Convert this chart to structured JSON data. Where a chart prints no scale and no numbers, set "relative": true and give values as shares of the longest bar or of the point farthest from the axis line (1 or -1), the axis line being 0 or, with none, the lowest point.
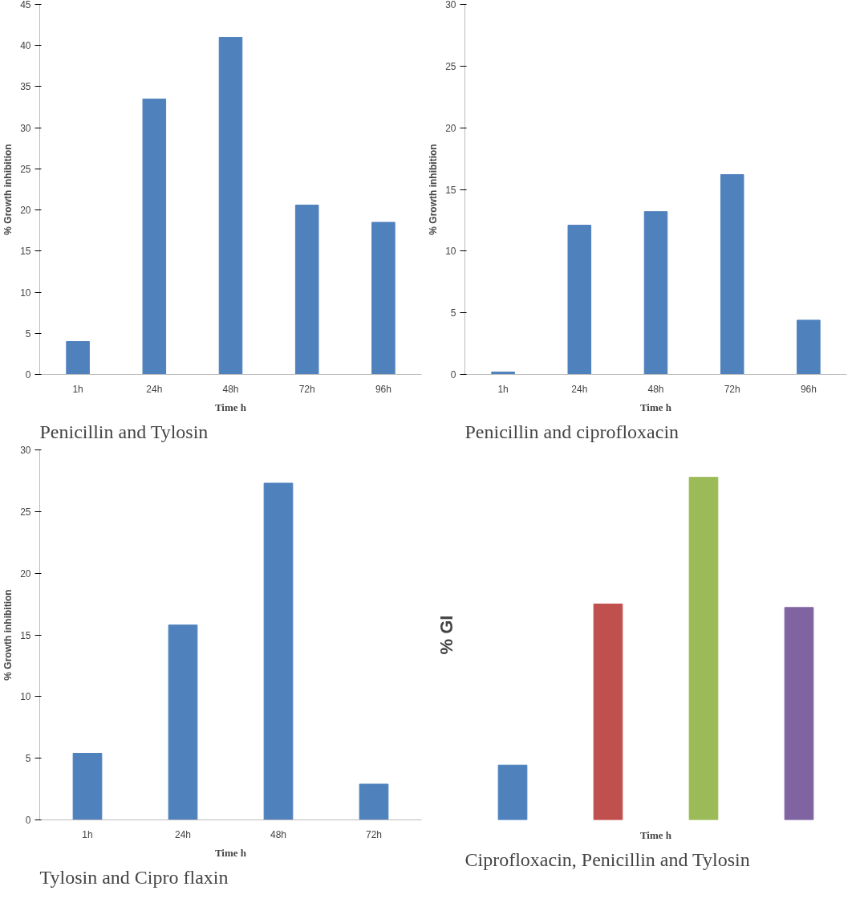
{
  "chart_data": [
    {
      "type": "bar",
      "title": "Penicillin and Tylosin",
      "xlabel": "Time h",
      "ylabel": "% Growth inhibition",
      "categories": [
        "1h",
        "24h",
        "48h",
        "72h",
        "96h"
      ],
      "values": [
        4,
        33.5,
        41,
        20.6,
        18.5
      ],
      "color": "#4f81bd",
      "ylim": [
        0,
        45
      ],
      "yticks": [
        0,
        5,
        10,
        15,
        20,
        25,
        30,
        35,
        40,
        45
      ],
      "grid": false
    },
    {
      "type": "bar",
      "title": "Penicillin and ciprofloxacin",
      "xlabel": "Time h",
      "ylabel": "% Growth inhibition",
      "categories": [
        "1h",
        "24h",
        "48h",
        "72h",
        "96h"
      ],
      "values": [
        0.2,
        12.1,
        13.2,
        16.2,
        4.4
      ],
      "color": "#4f81bd",
      "ylim": [
        0,
        30
      ],
      "yticks": [
        0,
        5,
        10,
        15,
        20,
        25,
        30
      ],
      "grid": false
    },
    {
      "type": "bar",
      "title": "Tylosin and Cipro flaxin",
      "xlabel": "Time h",
      "ylabel": "% Growth inhibition",
      "categories": [
        "1h",
        "24h",
        "48h",
        "72h"
      ],
      "values": [
        5.4,
        15.8,
        27.3,
        2.9
      ],
      "color": "#4f81bd",
      "ylim": [
        0,
        30
      ],
      "yticks": [
        0,
        5,
        10,
        15,
        20,
        25,
        30
      ],
      "grid": false
    },
    {
      "type": "bar",
      "title": "Ciprofloxacin, Penicillin and Tylosin",
      "xlabel": "Time h",
      "ylabel": "% GI",
      "categories": [
        null,
        null,
        null,
        null
      ],
      "values": [
        0.16,
        0.63,
        1,
        0.62
      ],
      "colors": [
        "#4f81bd",
        "#c0504d",
        "#9bbb59",
        "#8064a2"
      ],
      "relative": true,
      "grid": false
    }
  ]
}
